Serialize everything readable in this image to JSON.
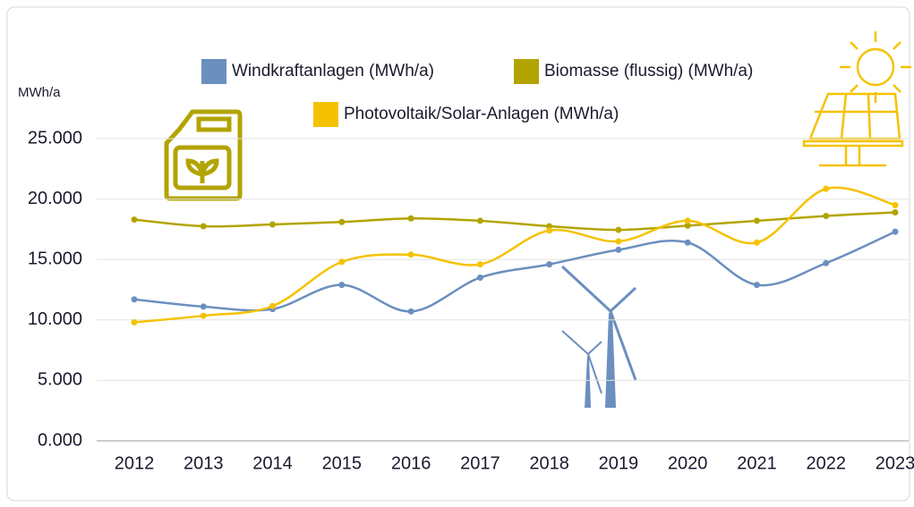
{
  "chart_data": {
    "type": "line",
    "y_axis_label": "MWh/a",
    "categories": [
      "2012",
      "2013",
      "2014",
      "2015",
      "2016",
      "2017",
      "2018",
      "2019",
      "2020",
      "2021",
      "2022",
      "2023"
    ],
    "series": [
      {
        "name": "Windkraftanlagen (MWh/a)",
        "color": "#6b8fbf",
        "values": [
          11700,
          11100,
          10900,
          12900,
          10700,
          13500,
          14600,
          15800,
          16400,
          12900,
          14700,
          17300
        ]
      },
      {
        "name": "Biomasse (flussig) (MWh/a)",
        "color": "#b2a400",
        "values": [
          18300,
          17750,
          17900,
          18100,
          18400,
          18200,
          17750,
          17450,
          17800,
          18200,
          18600,
          18900
        ]
      },
      {
        "name": "Photovoltaik/Solar-Anlagen (MWh/a)",
        "color": "#f5c200",
        "values": [
          9800,
          10350,
          11150,
          14800,
          15400,
          14600,
          17400,
          16500,
          18200,
          16400,
          20850,
          19500
        ]
      }
    ],
    "ylim": [
      0,
      25000
    ],
    "yticks": [
      {
        "value": 0,
        "label": "0.000"
      },
      {
        "value": 5000,
        "label": "5.000"
      },
      {
        "value": 10000,
        "label": "10.000"
      },
      {
        "value": 15000,
        "label": "15.000"
      },
      {
        "value": 20000,
        "label": "20.000"
      },
      {
        "value": 25000,
        "label": "25.000"
      }
    ],
    "grid": true,
    "smooth": true
  }
}
